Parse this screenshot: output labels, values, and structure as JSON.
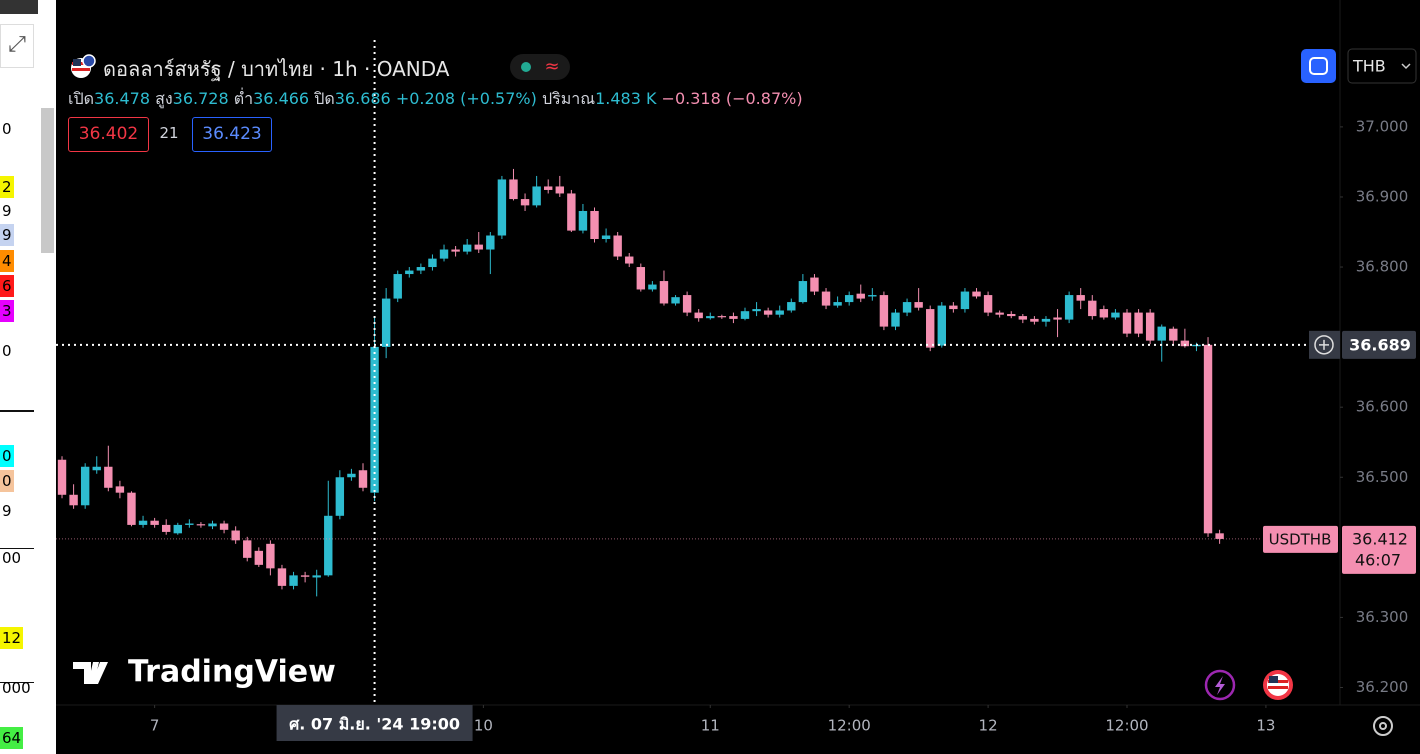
{
  "chart_data": {
    "type": "candlestick",
    "title": "ดอลลาร์สหรัฐ / บาทไทย · 1h · OANDA",
    "up_color": "#2ebcd0",
    "down_color": "#f48fb1",
    "grid": false,
    "open": [
      36.525,
      36.475,
      36.46,
      36.51,
      36.515,
      36.487,
      36.478,
      36.432,
      36.438,
      36.432,
      36.42,
      36.432,
      36.433,
      36.43,
      36.434,
      36.424,
      36.41,
      36.395,
      36.405,
      36.37,
      36.345,
      36.36,
      36.357,
      36.36,
      36.445,
      36.5,
      36.51,
      36.478,
      36.686,
      36.755,
      36.79,
      36.795,
      36.8,
      36.812,
      36.825,
      36.822,
      36.832,
      36.825,
      36.845,
      36.925,
      36.897,
      36.888,
      36.915,
      36.915,
      36.905,
      36.852,
      36.88,
      36.84,
      36.845,
      36.815,
      36.8,
      36.768,
      36.78,
      36.748,
      36.76,
      36.735,
      36.727,
      36.73,
      36.73,
      36.726,
      36.737,
      36.738,
      36.732,
      36.738,
      36.75,
      36.785,
      36.765,
      36.745,
      36.75,
      36.762,
      36.758,
      36.76,
      36.715,
      36.735,
      36.75,
      36.74,
      36.688,
      36.745,
      36.74,
      36.765,
      36.76,
      36.735,
      36.733,
      36.73,
      36.726,
      36.722,
      36.728,
      36.725,
      36.76,
      36.752,
      36.74,
      36.728,
      36.735,
      36.735,
      36.735,
      36.695,
      36.712,
      36.695,
      36.687,
      36.689,
      36.42
    ],
    "high": [
      36.53,
      36.49,
      36.52,
      36.53,
      36.545,
      36.495,
      36.48,
      36.445,
      36.442,
      36.44,
      36.435,
      36.44,
      36.436,
      36.438,
      36.438,
      36.43,
      36.415,
      36.4,
      36.41,
      36.375,
      36.365,
      36.365,
      36.368,
      36.495,
      36.51,
      36.512,
      36.52,
      36.728,
      36.77,
      36.795,
      36.8,
      36.805,
      36.818,
      36.832,
      36.83,
      36.84,
      36.85,
      36.85,
      36.93,
      36.94,
      36.905,
      36.93,
      36.925,
      36.93,
      36.91,
      36.89,
      36.885,
      36.855,
      36.85,
      36.82,
      36.805,
      36.78,
      36.795,
      36.76,
      36.765,
      36.74,
      36.735,
      36.732,
      36.735,
      36.742,
      36.75,
      36.742,
      36.745,
      36.755,
      36.79,
      36.79,
      36.77,
      36.758,
      36.765,
      36.775,
      36.77,
      36.765,
      36.74,
      36.755,
      36.77,
      36.745,
      36.75,
      36.75,
      36.77,
      36.77,
      36.765,
      36.738,
      36.737,
      36.733,
      36.73,
      36.73,
      36.74,
      36.765,
      36.77,
      36.76,
      36.745,
      36.74,
      36.74,
      36.74,
      36.74,
      36.718,
      36.715,
      36.712,
      36.692,
      36.7,
      36.425
    ],
    "low": [
      36.47,
      36.455,
      36.455,
      36.505,
      36.48,
      36.47,
      36.43,
      36.428,
      36.428,
      36.418,
      36.418,
      36.428,
      36.428,
      36.426,
      36.42,
      36.405,
      36.38,
      36.372,
      36.36,
      36.34,
      36.34,
      36.35,
      36.33,
      36.358,
      36.44,
      36.495,
      36.48,
      36.466,
      36.67,
      36.75,
      36.785,
      36.79,
      36.795,
      36.808,
      36.815,
      36.818,
      36.82,
      36.79,
      36.84,
      36.895,
      36.88,
      36.885,
      36.905,
      36.9,
      36.85,
      36.848,
      36.835,
      36.835,
      36.81,
      36.8,
      36.765,
      36.765,
      36.745,
      36.745,
      36.73,
      36.722,
      36.725,
      36.726,
      36.72,
      36.724,
      36.73,
      36.728,
      36.728,
      36.735,
      36.748,
      36.76,
      36.74,
      36.742,
      36.745,
      36.75,
      36.752,
      36.71,
      36.71,
      36.73,
      36.738,
      36.68,
      36.685,
      36.735,
      36.735,
      36.755,
      36.73,
      36.728,
      36.727,
      36.72,
      36.718,
      36.715,
      36.7,
      36.72,
      36.74,
      36.725,
      36.725,
      36.725,
      36.7,
      36.7,
      36.69,
      36.665,
      36.69,
      36.685,
      36.68,
      36.415,
      36.405
    ],
    "close": [
      36.475,
      36.46,
      36.515,
      36.515,
      36.485,
      36.478,
      36.432,
      36.438,
      36.432,
      36.422,
      36.432,
      36.434,
      36.432,
      36.434,
      36.425,
      36.41,
      36.385,
      36.375,
      36.37,
      36.345,
      36.36,
      36.358,
      36.36,
      36.445,
      36.5,
      36.505,
      36.485,
      36.686,
      36.755,
      36.79,
      36.795,
      36.8,
      36.812,
      36.825,
      36.822,
      36.832,
      36.825,
      36.845,
      36.925,
      36.897,
      36.888,
      36.915,
      36.91,
      36.905,
      36.852,
      36.88,
      36.84,
      36.845,
      36.815,
      36.805,
      36.768,
      36.775,
      36.748,
      36.757,
      36.735,
      36.727,
      36.73,
      36.729,
      36.726,
      36.737,
      36.74,
      36.732,
      36.738,
      36.75,
      36.78,
      36.765,
      36.745,
      36.75,
      36.76,
      36.755,
      36.76,
      36.715,
      36.735,
      36.75,
      36.742,
      36.685,
      36.745,
      36.74,
      36.765,
      36.758,
      36.735,
      36.732,
      36.73,
      36.725,
      36.722,
      36.726,
      36.725,
      36.76,
      36.752,
      36.73,
      36.728,
      36.735,
      36.705,
      36.705,
      36.695,
      36.715,
      36.695,
      36.687,
      36.689,
      36.42,
      36.412
    ],
    "ylim": [
      36.175,
      37.124
    ],
    "yticks": [
      {
        "value": 37,
        "label": "37.000"
      },
      {
        "value": 36.9,
        "label": "36.900"
      },
      {
        "value": 36.8,
        "label": "36.800"
      },
      {
        "value": 36.6,
        "label": "36.600"
      },
      {
        "value": 36.5,
        "label": "36.500"
      },
      {
        "value": 36.3,
        "label": "36.300"
      },
      {
        "value": 36.2,
        "label": "36.200"
      }
    ],
    "xlim": [
      -0.52,
      110.4
    ],
    "xticks": [
      {
        "value": 8,
        "label": "7"
      },
      {
        "value": 36.4,
        "label": "10"
      },
      {
        "value": 56,
        "label": "11"
      },
      {
        "value": 68,
        "label": "12:00"
      },
      {
        "value": 80,
        "label": "12"
      },
      {
        "value": 92,
        "label": "12:00"
      },
      {
        "value": 104,
        "label": "13"
      }
    ],
    "crosshair": {
      "x": 27,
      "price": 36.689,
      "time_label": "ศ. 07 มิ.ย. '24 19:00"
    },
    "symbol": "USDTHB",
    "countdown": "46:07"
  },
  "header": {
    "open_label": "เปิด",
    "high_label": "สูง",
    "low_label": "ต่ำ",
    "close_label": "ปิด",
    "change": "+0.208 (+0.57%)",
    "volume_label": "ปริมาณ",
    "volume": "1.483 K",
    "volume_change": "−0.318 (−0.87%)",
    "sell": 36.402,
    "spread": 21,
    "buy": 36.423,
    "currency": "THB",
    "logo": "TradingView"
  },
  "left_panel": [
    {
      "text": "0"
    },
    {
      "text": "2",
      "color": "#f5f500"
    },
    {
      "text": "9",
      "color": "#ffffff"
    },
    {
      "text": "9",
      "color": "#c5d3f0"
    },
    {
      "text": "4",
      "color": "#ff8c00"
    },
    {
      "text": "6",
      "color": "#ff1a1a"
    },
    {
      "text": "3",
      "color": "#e600ff"
    },
    {
      "text": "0"
    },
    {
      "text": "0",
      "color": "#00ffff"
    },
    {
      "text": "0",
      "color": "#f5c49c"
    },
    {
      "text": "9",
      "color": "#ffffff"
    },
    {
      "text": "00"
    },
    {
      "text": "12",
      "color": "#f5f500"
    },
    {
      "text": "000"
    },
    {
      "text": "64",
      "color": "#44ee44"
    }
  ]
}
